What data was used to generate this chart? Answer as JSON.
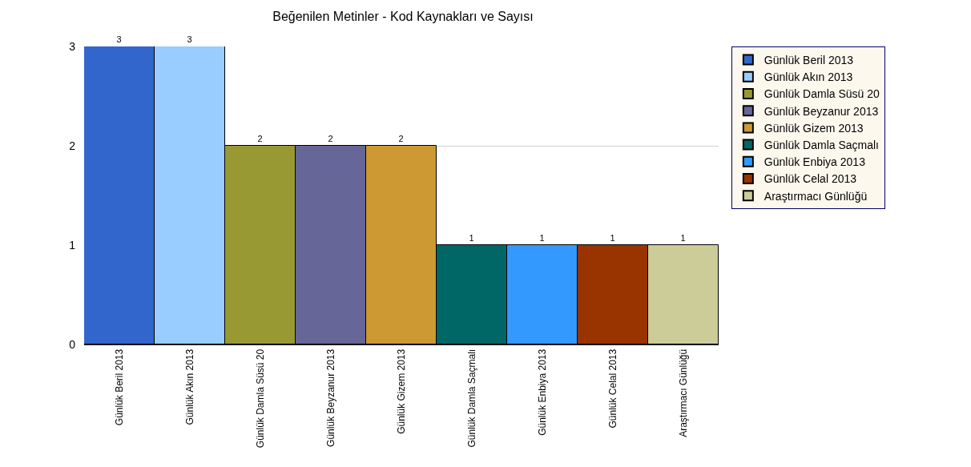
{
  "chart_data": {
    "type": "bar",
    "title": "Beğenilen Metinler - Kod Kaynakları ve Sayısı",
    "categories": [
      "Günlük Beril 2013",
      "Günlük Akın 2013",
      "Günlük Damla Süsü 20",
      "Günlük Beyzanur 2013",
      "Günlük Gizem 2013",
      "Günlük Damla Saçmalı",
      "Günlük Enbiya 2013",
      "Günlük Celal 2013",
      "Araştırmacı Günlüğü"
    ],
    "series": [
      {
        "name": "Günlük Beril 2013",
        "color": "#3366cc",
        "values": [
          3,
          null,
          null,
          null,
          null,
          null,
          null,
          null,
          null
        ]
      },
      {
        "name": "Günlük Akın 2013",
        "color": "#99ccff",
        "values": [
          null,
          3,
          null,
          null,
          null,
          null,
          null,
          null,
          null
        ]
      },
      {
        "name": "Günlük Damla Süsü 20",
        "color": "#999933",
        "values": [
          null,
          null,
          2,
          null,
          null,
          null,
          null,
          null,
          null
        ]
      },
      {
        "name": "Günlük Beyzanur 2013",
        "color": "#666699",
        "values": [
          null,
          null,
          null,
          2,
          null,
          null,
          null,
          null,
          null
        ]
      },
      {
        "name": "Günlük Gizem 2013",
        "color": "#cc9933",
        "values": [
          null,
          null,
          null,
          null,
          2,
          null,
          null,
          null,
          null
        ]
      },
      {
        "name": "Günlük Damla Saçmalı",
        "color": "#006666",
        "values": [
          null,
          null,
          null,
          null,
          null,
          1,
          null,
          null,
          null
        ]
      },
      {
        "name": "Günlük Enbiya 2013",
        "color": "#3399ff",
        "values": [
          null,
          null,
          null,
          null,
          null,
          null,
          1,
          null,
          null
        ]
      },
      {
        "name": "Günlük Celal 2013",
        "color": "#993300",
        "values": [
          null,
          null,
          null,
          null,
          null,
          null,
          null,
          1,
          null
        ]
      },
      {
        "name": "Araştırmacı Günlüğü",
        "color": "#cccc99",
        "values": [
          null,
          null,
          null,
          null,
          null,
          null,
          null,
          null,
          1
        ]
      }
    ],
    "ylim": [
      0,
      3
    ],
    "yticks": [
      0,
      1,
      2,
      3
    ],
    "grid": "y",
    "legend": "right",
    "data_labels": true
  }
}
